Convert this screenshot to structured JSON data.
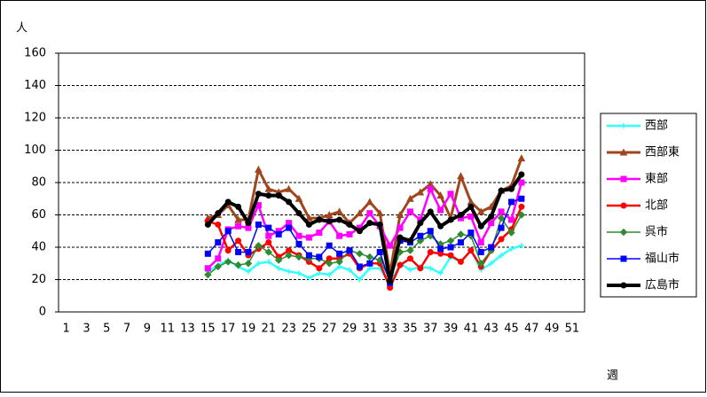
{
  "chart_data": {
    "type": "line",
    "y_label": "人",
    "x_label": "週",
    "categories": [
      "1",
      null,
      "3",
      null,
      "5",
      null,
      "7",
      null,
      "9",
      null,
      "11",
      null,
      "13",
      null,
      "15",
      null,
      "17",
      null,
      "19",
      null,
      "21",
      null,
      "23",
      null,
      "25",
      null,
      "27",
      null,
      "29",
      null,
      "31",
      null,
      "33",
      null,
      "35",
      null,
      "37",
      null,
      "39",
      null,
      "41",
      null,
      "43",
      null,
      "45",
      null,
      "47",
      null,
      "49",
      null,
      "51",
      null
    ],
    "ylim": [
      0,
      160
    ],
    "yticks": [
      0,
      20,
      40,
      60,
      80,
      100,
      120,
      140,
      160
    ],
    "grid": true,
    "legend": "right",
    "series": [
      {
        "name": "西部",
        "color": "#33ffff",
        "marker": "star",
        "width": 2.5,
        "values": [
          null,
          null,
          null,
          null,
          null,
          null,
          null,
          null,
          null,
          null,
          null,
          null,
          null,
          null,
          25,
          29,
          32,
          28,
          25,
          30,
          31,
          27,
          25,
          24,
          21,
          24,
          23,
          28,
          26,
          20,
          27,
          27,
          17,
          30,
          26,
          28,
          27,
          24,
          34,
          31,
          38,
          26,
          30,
          35,
          39,
          41,
          null,
          null,
          null,
          null,
          null,
          null
        ]
      },
      {
        "name": "西部東",
        "color": "#a0461e",
        "marker": "triangle",
        "width": 3,
        "values": [
          null,
          null,
          null,
          null,
          null,
          null,
          null,
          null,
          null,
          null,
          null,
          null,
          null,
          null,
          58,
          60,
          66,
          57,
          57,
          88,
          76,
          74,
          76,
          70,
          58,
          58,
          60,
          62,
          55,
          61,
          68,
          61,
          24,
          60,
          70,
          74,
          79,
          72,
          58,
          84,
          68,
          62,
          65,
          75,
          78,
          95,
          null,
          null,
          null,
          null,
          null,
          null
        ]
      },
      {
        "name": "東部",
        "color": "#ff00ff",
        "marker": "square",
        "width": 2.5,
        "values": [
          null,
          null,
          null,
          null,
          null,
          null,
          null,
          null,
          null,
          null,
          null,
          null,
          null,
          null,
          27,
          33,
          51,
          53,
          52,
          66,
          47,
          50,
          55,
          47,
          46,
          49,
          56,
          47,
          48,
          52,
          61,
          53,
          41,
          52,
          62,
          57,
          76,
          63,
          73,
          58,
          59,
          43,
          55,
          62,
          57,
          80,
          null,
          null,
          null,
          null,
          null,
          null
        ]
      },
      {
        "name": "北部",
        "color": "#ff0000",
        "marker": "circle",
        "width": 2.5,
        "values": [
          null,
          null,
          null,
          null,
          null,
          null,
          null,
          null,
          null,
          null,
          null,
          null,
          null,
          null,
          56,
          54,
          38,
          44,
          35,
          39,
          43,
          34,
          38,
          35,
          31,
          27,
          33,
          33,
          36,
          27,
          30,
          30,
          15,
          29,
          33,
          27,
          37,
          36,
          35,
          31,
          38,
          28,
          38,
          45,
          51,
          65,
          null,
          null,
          null,
          null,
          null,
          null
        ]
      },
      {
        "name": "呉市",
        "color": "#2e8b2e",
        "marker": "diamond",
        "width": 1.5,
        "values": [
          null,
          null,
          null,
          null,
          null,
          null,
          null,
          null,
          null,
          null,
          null,
          null,
          null,
          null,
          23,
          28,
          31,
          29,
          30,
          41,
          37,
          32,
          35,
          34,
          33,
          33,
          30,
          31,
          38,
          36,
          34,
          32,
          20,
          37,
          38,
          44,
          47,
          42,
          44,
          48,
          47,
          30,
          38,
          58,
          49,
          60,
          null,
          null,
          null,
          null,
          null,
          null
        ]
      },
      {
        "name": "福山市",
        "color": "#0000ff",
        "marker": "square",
        "width": 1.5,
        "values": [
          null,
          null,
          null,
          null,
          null,
          null,
          null,
          null,
          null,
          null,
          null,
          null,
          null,
          null,
          36,
          43,
          50,
          37,
          37,
          54,
          52,
          48,
          52,
          42,
          35,
          34,
          41,
          36,
          38,
          28,
          30,
          37,
          18,
          44,
          43,
          47,
          50,
          39,
          40,
          43,
          49,
          37,
          40,
          52,
          68,
          70,
          null,
          null,
          null,
          null,
          null,
          null
        ]
      },
      {
        "name": "広島市",
        "color": "#000000",
        "marker": "circle",
        "width": 4,
        "values": [
          null,
          null,
          null,
          null,
          null,
          null,
          null,
          null,
          null,
          null,
          null,
          null,
          null,
          null,
          54,
          61,
          68,
          65,
          55,
          73,
          72,
          72,
          68,
          61,
          54,
          57,
          56,
          57,
          54,
          50,
          55,
          54,
          19,
          46,
          44,
          55,
          62,
          53,
          57,
          60,
          65,
          53,
          59,
          75,
          76,
          85,
          null,
          null,
          null,
          null,
          null,
          null
        ]
      }
    ]
  }
}
